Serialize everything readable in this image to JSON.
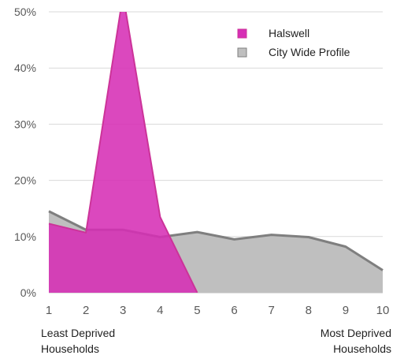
{
  "chart_data": {
    "type": "area",
    "title": "",
    "xlabel": "",
    "ylabel": "",
    "x": [
      1,
      2,
      3,
      4,
      5,
      6,
      7,
      8,
      9,
      10
    ],
    "xlim": [
      1,
      10
    ],
    "ylim": [
      0,
      50
    ],
    "y_ticks": [
      0,
      10,
      20,
      30,
      40,
      50
    ],
    "y_tick_labels": [
      "0%",
      "10%",
      "20%",
      "30%",
      "40%",
      "50%"
    ],
    "x_tick_labels": [
      "1",
      "2",
      "3",
      "4",
      "5",
      "6",
      "7",
      "8",
      "9",
      "10"
    ],
    "grid": true,
    "legend_position": "top-right",
    "series": [
      {
        "name": "City Wide Profile",
        "values": [
          14.5,
          11.2,
          11.2,
          9.9,
          10.8,
          9.5,
          10.3,
          9.9,
          8.2,
          4.0
        ],
        "color": "#7f7f7f",
        "fill": "#bfbfbf"
      },
      {
        "name": "Halswell",
        "values": [
          12.3,
          10.7,
          53,
          13.5,
          0,
          null,
          null,
          null,
          null,
          null
        ],
        "color": "#cc3399",
        "fill": "#d62fb5"
      }
    ],
    "annotations": {
      "left_line1": "Least Deprived",
      "left_line2": "Households",
      "right_line1": "Most Deprived",
      "right_line2": "Households"
    }
  }
}
